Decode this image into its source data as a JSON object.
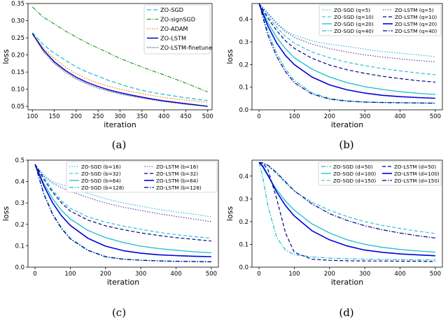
{
  "chart_data": [
    {
      "type": "line",
      "caption": "(a)",
      "xlabel": "iteration",
      "ylabel": "loss",
      "xlim": [
        90,
        510
      ],
      "ylim": [
        0.04,
        0.35
      ],
      "xticks": [
        100,
        150,
        200,
        250,
        300,
        350,
        400,
        450,
        500
      ],
      "yticks": [
        0.05,
        0.1,
        0.15,
        0.2,
        0.25,
        0.3,
        0.35
      ],
      "ytick_labels": [
        "0.05",
        "0.10",
        "0.15",
        "0.20",
        "0.25",
        "0.30",
        "0.35"
      ],
      "legend_position": "top-right",
      "x": [
        100,
        125,
        150,
        175,
        200,
        225,
        250,
        275,
        300,
        325,
        350,
        375,
        400,
        425,
        450,
        475,
        500
      ],
      "series": [
        {
          "name": "ZO-SGD",
          "color": "#17becf",
          "dash": "6,3",
          "width": 1.2,
          "values": [
            0.265,
            0.23,
            0.205,
            0.185,
            0.165,
            0.15,
            0.138,
            0.125,
            0.115,
            0.105,
            0.097,
            0.09,
            0.085,
            0.08,
            0.075,
            0.071,
            0.067
          ]
        },
        {
          "name": "ZO-signSGD",
          "color": "#2ca02c",
          "dash": "6,2,1.5,2",
          "width": 1.2,
          "values": [
            0.34,
            0.31,
            0.29,
            0.27,
            0.252,
            0.235,
            0.22,
            0.205,
            0.19,
            0.177,
            0.165,
            0.153,
            0.142,
            0.13,
            0.118,
            0.105,
            0.092
          ]
        },
        {
          "name": "ZO-ADAM",
          "color": "#ff7f0e",
          "dash": "1.5,2",
          "width": 1.3,
          "values": [
            0.262,
            0.22,
            0.19,
            0.165,
            0.145,
            0.13,
            0.118,
            0.108,
            0.1,
            0.093,
            0.087,
            0.081,
            0.076,
            0.072,
            0.068,
            0.065,
            0.062
          ]
        },
        {
          "name": "ZO-LSTM",
          "color": "#0000dd",
          "dash": "",
          "width": 1.5,
          "values": [
            0.262,
            0.215,
            0.18,
            0.155,
            0.135,
            0.12,
            0.108,
            0.098,
            0.09,
            0.083,
            0.077,
            0.071,
            0.066,
            0.062,
            0.058,
            0.054,
            0.05
          ]
        },
        {
          "name": "ZO-LSTM-finetune",
          "color": "#202020",
          "dash": "1,1.5",
          "width": 1.2,
          "values": [
            0.262,
            0.21,
            0.175,
            0.15,
            0.13,
            0.115,
            0.103,
            0.094,
            0.086,
            0.08,
            0.074,
            0.069,
            0.064,
            0.06,
            0.056,
            0.053,
            0.05
          ]
        }
      ]
    },
    {
      "type": "line",
      "caption": "(b)",
      "xlabel": "iteration",
      "ylabel": "loss",
      "xlim": [
        -20,
        520
      ],
      "ylim": [
        0.0,
        0.47
      ],
      "xticks": [
        0,
        100,
        200,
        300,
        400,
        500
      ],
      "yticks": [
        0.0,
        0.1,
        0.2,
        0.3,
        0.4
      ],
      "ytick_labels": [
        "0.0",
        "0.1",
        "0.2",
        "0.3",
        "0.4"
      ],
      "legend_position": "top-right",
      "x": [
        0,
        25,
        50,
        75,
        100,
        150,
        200,
        250,
        300,
        350,
        400,
        450,
        500
      ],
      "series": [
        {
          "name": "ZO-SGD (q=5)",
          "color": "#17becf",
          "dash": "1.5,2",
          "width": 1.1,
          "values": [
            0.47,
            0.43,
            0.385,
            0.35,
            0.33,
            0.305,
            0.29,
            0.28,
            0.268,
            0.258,
            0.25,
            0.243,
            0.235
          ]
        },
        {
          "name": "ZO-SGD (q=10)",
          "color": "#17becf",
          "dash": "5,3",
          "width": 1.1,
          "values": [
            0.47,
            0.415,
            0.365,
            0.325,
            0.295,
            0.255,
            0.23,
            0.21,
            0.195,
            0.182,
            0.172,
            0.163,
            0.155
          ]
        },
        {
          "name": "ZO-SGD (q=20)",
          "color": "#17becf",
          "dash": "",
          "width": 1.3,
          "values": [
            0.47,
            0.385,
            0.32,
            0.27,
            0.23,
            0.18,
            0.145,
            0.12,
            0.102,
            0.09,
            0.08,
            0.073,
            0.068
          ]
        },
        {
          "name": "ZO-SGD (q=40)",
          "color": "#17becf",
          "dash": "6,2,1.5,2",
          "width": 1.2,
          "values": [
            0.47,
            0.345,
            0.25,
            0.18,
            0.13,
            0.075,
            0.05,
            0.04,
            0.035,
            0.033,
            0.032,
            0.031,
            0.03
          ]
        },
        {
          "name": "ZO-LSTM (q=5)",
          "color": "#5b2ea6",
          "dash": "1.5,2",
          "width": 1.1,
          "values": [
            0.47,
            0.425,
            0.38,
            0.345,
            0.32,
            0.29,
            0.27,
            0.255,
            0.243,
            0.233,
            0.225,
            0.218,
            0.212
          ]
        },
        {
          "name": "ZO-LSTM (q=10)",
          "color": "#00008b",
          "dash": "5,3",
          "width": 1.2,
          "values": [
            0.47,
            0.405,
            0.35,
            0.305,
            0.272,
            0.228,
            0.198,
            0.177,
            0.161,
            0.148,
            0.138,
            0.129,
            0.122
          ]
        },
        {
          "name": "ZO-LSTM (q=20)",
          "color": "#0000dd",
          "dash": "",
          "width": 1.6,
          "values": [
            0.47,
            0.37,
            0.295,
            0.24,
            0.2,
            0.145,
            0.11,
            0.088,
            0.074,
            0.064,
            0.058,
            0.054,
            0.051
          ]
        },
        {
          "name": "ZO-LSTM (q=40)",
          "color": "#00008b",
          "dash": "6,2,1.5,2",
          "width": 1.2,
          "values": [
            0.47,
            0.33,
            0.235,
            0.168,
            0.12,
            0.07,
            0.047,
            0.038,
            0.034,
            0.032,
            0.031,
            0.03,
            0.029
          ]
        }
      ]
    },
    {
      "type": "line",
      "caption": "(c)",
      "xlabel": "iteration",
      "ylabel": "loss",
      "xlim": [
        -20,
        520
      ],
      "ylim": [
        0.0,
        0.5
      ],
      "xticks": [
        0,
        100,
        200,
        300,
        400,
        500
      ],
      "yticks": [
        0.0,
        0.1,
        0.2,
        0.3,
        0.4,
        0.5
      ],
      "ytick_labels": [
        "0.0",
        "0.1",
        "0.2",
        "0.3",
        "0.4",
        "0.5"
      ],
      "legend_position": "top-right",
      "x": [
        0,
        25,
        50,
        75,
        100,
        150,
        200,
        250,
        300,
        350,
        400,
        450,
        500
      ],
      "series": [
        {
          "name": "ZO-SGD (b=16)",
          "color": "#17becf",
          "dash": "1.5,2",
          "width": 1.1,
          "values": [
            0.48,
            0.43,
            0.4,
            0.385,
            0.375,
            0.345,
            0.32,
            0.3,
            0.285,
            0.27,
            0.258,
            0.248,
            0.235
          ]
        },
        {
          "name": "ZO-SGD (b=32)",
          "color": "#17becf",
          "dash": "5,3",
          "width": 1.1,
          "values": [
            0.48,
            0.42,
            0.36,
            0.31,
            0.275,
            0.235,
            0.21,
            0.192,
            0.177,
            0.163,
            0.152,
            0.143,
            0.135
          ]
        },
        {
          "name": "ZO-SGD (b=64)",
          "color": "#17becf",
          "dash": "",
          "width": 1.3,
          "values": [
            0.48,
            0.39,
            0.32,
            0.265,
            0.225,
            0.172,
            0.138,
            0.115,
            0.098,
            0.087,
            0.079,
            0.072,
            0.067
          ]
        },
        {
          "name": "ZO-SGD (b=128)",
          "color": "#17becf",
          "dash": "6,2,1.5,2",
          "width": 1.2,
          "values": [
            0.48,
            0.345,
            0.25,
            0.185,
            0.135,
            0.08,
            0.05,
            0.038,
            0.033,
            0.03,
            0.028,
            0.027,
            0.026
          ]
        },
        {
          "name": "ZO-LSTM (b=16)",
          "color": "#5b2ea6",
          "dash": "1.5,2",
          "width": 1.1,
          "values": [
            0.48,
            0.425,
            0.392,
            0.372,
            0.355,
            0.325,
            0.3,
            0.28,
            0.265,
            0.25,
            0.237,
            0.225,
            0.212
          ]
        },
        {
          "name": "ZO-LSTM (b=32)",
          "color": "#00008b",
          "dash": "5,3",
          "width": 1.2,
          "values": [
            0.48,
            0.41,
            0.35,
            0.3,
            0.262,
            0.22,
            0.193,
            0.175,
            0.16,
            0.148,
            0.138,
            0.13,
            0.122
          ]
        },
        {
          "name": "ZO-LSTM (b=64)",
          "color": "#0000dd",
          "dash": "",
          "width": 1.6,
          "values": [
            0.48,
            0.38,
            0.3,
            0.24,
            0.195,
            0.135,
            0.098,
            0.077,
            0.065,
            0.058,
            0.054,
            0.051,
            0.049
          ]
        },
        {
          "name": "ZO-LSTM (b=128)",
          "color": "#00008b",
          "dash": "6,2,1.5,2",
          "width": 1.2,
          "values": [
            0.48,
            0.34,
            0.245,
            0.18,
            0.132,
            0.078,
            0.048,
            0.037,
            0.032,
            0.029,
            0.027,
            0.026,
            0.025
          ]
        }
      ]
    },
    {
      "type": "line",
      "caption": "(d)",
      "xlabel": "iteration",
      "ylabel": "loss",
      "xlim": [
        -20,
        520
      ],
      "ylim": [
        0.0,
        0.47
      ],
      "xticks": [
        0,
        100,
        200,
        300,
        400,
        500
      ],
      "yticks": [
        0.0,
        0.1,
        0.2,
        0.3,
        0.4
      ],
      "ytick_labels": [
        "0.0",
        "0.1",
        "0.2",
        "0.3",
        "0.4"
      ],
      "legend_position": "top-right",
      "x": [
        0,
        10,
        25,
        50,
        75,
        100,
        150,
        200,
        250,
        300,
        350,
        400,
        450,
        500
      ],
      "series": [
        {
          "name": "ZO-SGD (d=50)",
          "color": "#17becf",
          "dash": "6,2,1.5,2",
          "width": 1.2,
          "values": [
            0.46,
            0.4,
            0.27,
            0.13,
            0.075,
            0.055,
            0.045,
            0.04,
            0.037,
            0.035,
            0.034,
            0.033,
            0.032,
            0.032
          ]
        },
        {
          "name": "ZO-SGD (d=100)",
          "color": "#17becf",
          "dash": "",
          "width": 1.3,
          "values": [
            0.46,
            0.44,
            0.4,
            0.34,
            0.29,
            0.25,
            0.19,
            0.15,
            0.12,
            0.1,
            0.087,
            0.078,
            0.071,
            0.066
          ]
        },
        {
          "name": "ZO-SGD (d=150)",
          "color": "#17becf",
          "dash": "5,3",
          "width": 1.1,
          "values": [
            0.46,
            0.455,
            0.445,
            0.41,
            0.37,
            0.335,
            0.285,
            0.25,
            0.222,
            0.2,
            0.183,
            0.17,
            0.158,
            0.148
          ]
        },
        {
          "name": "ZO-LSTM (d=50)",
          "color": "#00008b",
          "dash": "5,3",
          "width": 1.2,
          "values": [
            0.46,
            0.455,
            0.43,
            0.3,
            0.15,
            0.065,
            0.035,
            0.03,
            0.028,
            0.027,
            0.027,
            0.026,
            0.026,
            0.025
          ]
        },
        {
          "name": "ZO-LSTM (d=100)",
          "color": "#0000dd",
          "dash": "",
          "width": 1.6,
          "values": [
            0.46,
            0.445,
            0.405,
            0.33,
            0.27,
            0.225,
            0.16,
            0.12,
            0.093,
            0.075,
            0.065,
            0.058,
            0.054,
            0.05
          ]
        },
        {
          "name": "ZO-LSTM (d=150)",
          "color": "#00008b",
          "dash": "6,2,1.5,2",
          "width": 1.2,
          "values": [
            0.46,
            0.458,
            0.448,
            0.415,
            0.375,
            0.335,
            0.278,
            0.235,
            0.205,
            0.182,
            0.164,
            0.15,
            0.138,
            0.128
          ]
        }
      ]
    }
  ]
}
